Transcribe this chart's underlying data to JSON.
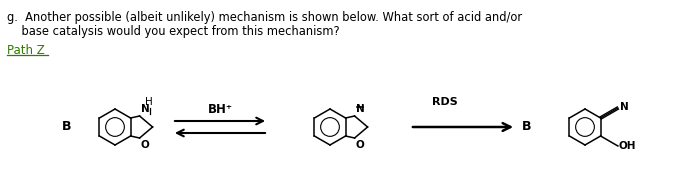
{
  "background_color": "#ffffff",
  "text_line1": "g.  Another possible (albeit unlikely) mechanism is shown below. What sort of acid and/or",
  "text_line2": "    base catalysis would you expect from this mechanism?",
  "path_z_label": "Path Z",
  "label_B_left": "B",
  "label_BH": "BH⁺",
  "label_RDS": "RDS",
  "label_B_right": "B",
  "text_color": "#000000",
  "green_color": "#2e7d00",
  "figsize": [
    7.0,
    1.85
  ],
  "dpi": 100
}
